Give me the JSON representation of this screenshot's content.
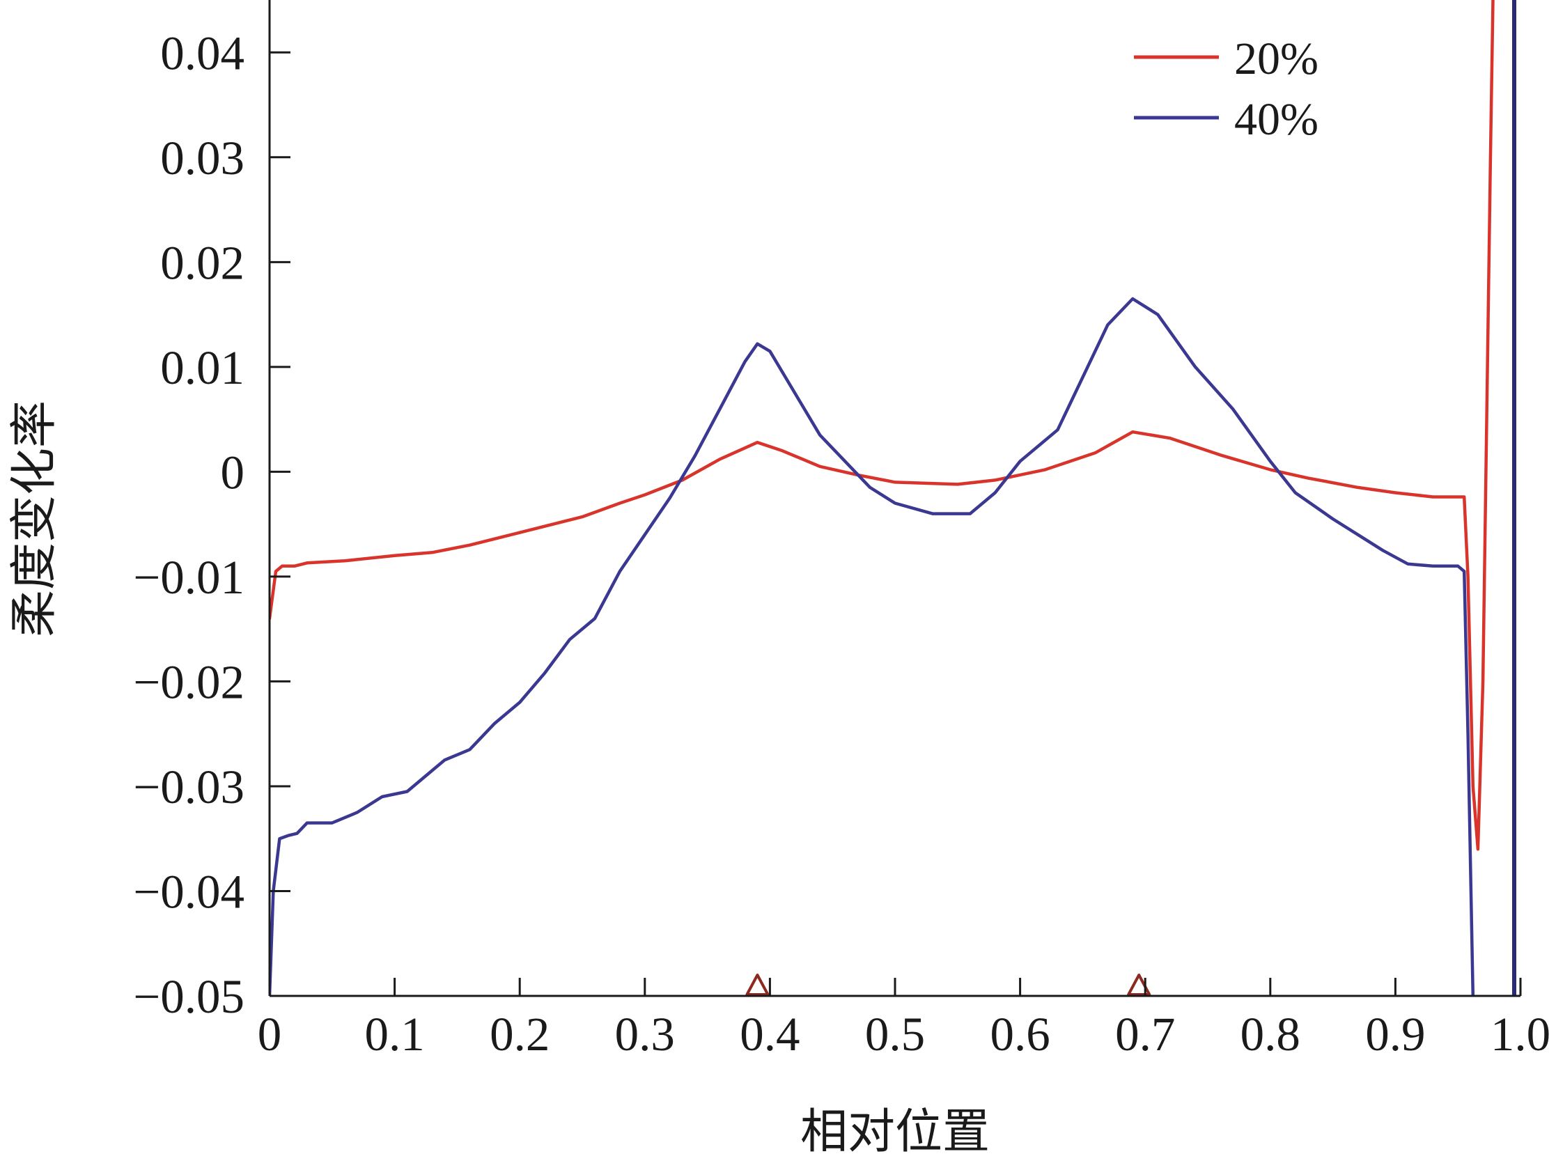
{
  "chart_data": {
    "type": "line",
    "title": "",
    "xlabel": "相对位置",
    "ylabel": "柔度变化率",
    "xlim": [
      0,
      1.0
    ],
    "ylim": [
      -0.05,
      0.045
    ],
    "x_ticks": [
      0,
      0.1,
      0.2,
      0.3,
      0.4,
      0.5,
      0.6,
      0.7,
      0.8,
      0.9,
      1.0
    ],
    "x_tick_labels": [
      "0",
      "0.1",
      "0.2",
      "0.3",
      "0.4",
      "0.5",
      "0.6",
      "0.7",
      "0.8",
      "0.9",
      "1.0"
    ],
    "y_ticks": [
      -0.05,
      -0.04,
      -0.03,
      -0.02,
      -0.01,
      0,
      0.01,
      0.02,
      0.03,
      0.04
    ],
    "y_tick_labels": [
      "−0.05",
      "−0.04",
      "−0.03",
      "−0.02",
      "−0.01",
      "0",
      "0.01",
      "0.02",
      "0.03",
      "0.04"
    ],
    "markers": [
      {
        "type": "triangle",
        "x": 0.39
      },
      {
        "type": "triangle",
        "x": 0.695
      }
    ],
    "grid": false,
    "legend_position": "top-right",
    "series": [
      {
        "name": "20%",
        "color": "#d9342b",
        "points": [
          [
            0,
            -0.014
          ],
          [
            0.005,
            -0.0095
          ],
          [
            0.01,
            -0.009
          ],
          [
            0.02,
            -0.009
          ],
          [
            0.03,
            -0.0087
          ],
          [
            0.06,
            -0.0085
          ],
          [
            0.1,
            -0.008
          ],
          [
            0.13,
            -0.0077
          ],
          [
            0.16,
            -0.007
          ],
          [
            0.2,
            -0.0058
          ],
          [
            0.25,
            -0.0043
          ],
          [
            0.28,
            -0.003
          ],
          [
            0.3,
            -0.0022
          ],
          [
            0.33,
            -0.0008
          ],
          [
            0.36,
            0.0012
          ],
          [
            0.39,
            0.0028
          ],
          [
            0.41,
            0.002
          ],
          [
            0.44,
            0.0005
          ],
          [
            0.47,
            -0.0003
          ],
          [
            0.5,
            -0.001
          ],
          [
            0.55,
            -0.0012
          ],
          [
            0.58,
            -0.0008
          ],
          [
            0.62,
            0.0002
          ],
          [
            0.66,
            0.0018
          ],
          [
            0.69,
            0.0038
          ],
          [
            0.72,
            0.0032
          ],
          [
            0.76,
            0.0016
          ],
          [
            0.8,
            0.0002
          ],
          [
            0.83,
            -0.0006
          ],
          [
            0.87,
            -0.0015
          ],
          [
            0.9,
            -0.002
          ],
          [
            0.93,
            -0.0024
          ],
          [
            0.955,
            -0.0024
          ],
          [
            0.958,
            -0.01
          ],
          [
            0.962,
            -0.03
          ],
          [
            0.966,
            -0.036
          ],
          [
            0.97,
            -0.02
          ],
          [
            0.973,
            0.005
          ],
          [
            0.976,
            0.03
          ],
          [
            0.978,
            0.045
          ]
        ]
      },
      {
        "name": "40%",
        "color": "#3b3891",
        "points": [
          [
            0,
            -0.05
          ],
          [
            0.003,
            -0.04
          ],
          [
            0.008,
            -0.035
          ],
          [
            0.015,
            -0.0347
          ],
          [
            0.022,
            -0.0345
          ],
          [
            0.03,
            -0.0335
          ],
          [
            0.05,
            -0.0335
          ],
          [
            0.07,
            -0.0325
          ],
          [
            0.09,
            -0.031
          ],
          [
            0.11,
            -0.0305
          ],
          [
            0.125,
            -0.029
          ],
          [
            0.14,
            -0.0275
          ],
          [
            0.16,
            -0.0265
          ],
          [
            0.18,
            -0.024
          ],
          [
            0.2,
            -0.022
          ],
          [
            0.22,
            -0.0192
          ],
          [
            0.24,
            -0.016
          ],
          [
            0.26,
            -0.014
          ],
          [
            0.28,
            -0.0095
          ],
          [
            0.3,
            -0.006
          ],
          [
            0.32,
            -0.0025
          ],
          [
            0.34,
            0.0015
          ],
          [
            0.36,
            0.006
          ],
          [
            0.38,
            0.0105
          ],
          [
            0.39,
            0.0122
          ],
          [
            0.4,
            0.0115
          ],
          [
            0.42,
            0.0075
          ],
          [
            0.44,
            0.0035
          ],
          [
            0.46,
            0.001
          ],
          [
            0.48,
            -0.0015
          ],
          [
            0.5,
            -0.003
          ],
          [
            0.53,
            -0.004
          ],
          [
            0.56,
            -0.004
          ],
          [
            0.58,
            -0.002
          ],
          [
            0.6,
            0.001
          ],
          [
            0.63,
            0.004
          ],
          [
            0.65,
            0.009
          ],
          [
            0.67,
            0.014
          ],
          [
            0.69,
            0.0165
          ],
          [
            0.71,
            0.015
          ],
          [
            0.74,
            0.01
          ],
          [
            0.77,
            0.006
          ],
          [
            0.8,
            0.001
          ],
          [
            0.82,
            -0.002
          ],
          [
            0.85,
            -0.0045
          ],
          [
            0.87,
            -0.006
          ],
          [
            0.89,
            -0.0075
          ],
          [
            0.91,
            -0.0088
          ],
          [
            0.93,
            -0.009
          ],
          [
            0.95,
            -0.009
          ],
          [
            0.955,
            -0.0095
          ],
          [
            0.958,
            -0.025
          ],
          [
            0.962,
            -0.05
          ]
        ]
      },
      {
        "name": "",
        "color": "#2a2a7a",
        "points": [
          [
            0.995,
            0.045
          ],
          [
            0.995,
            -0.05
          ]
        ]
      }
    ]
  }
}
